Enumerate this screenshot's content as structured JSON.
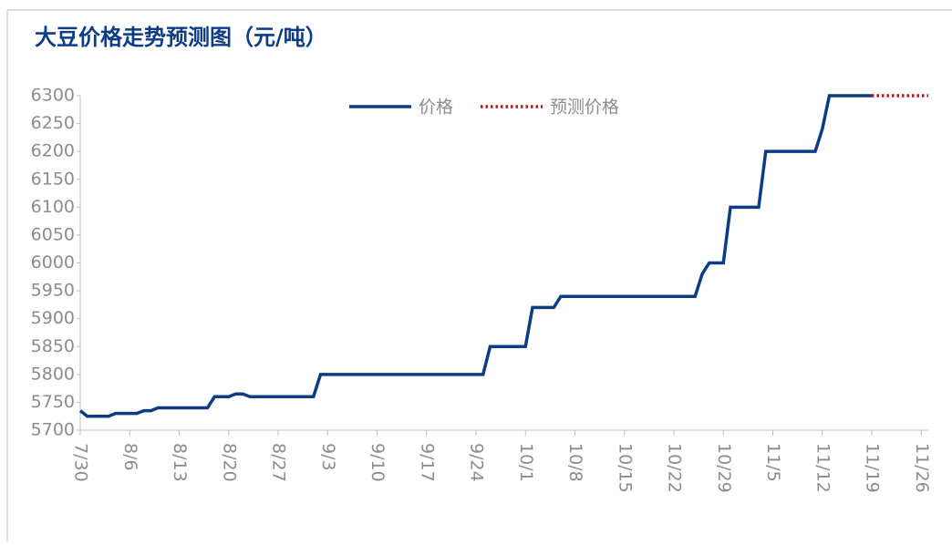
{
  "chart_data": {
    "type": "line",
    "title": "大豆价格走势预测图（元/吨）",
    "xlim": [
      "7/30",
      "11/27"
    ],
    "xticks": [
      "7/30",
      "8/6",
      "8/13",
      "8/20",
      "8/27",
      "9/3",
      "9/10",
      "9/17",
      "9/24",
      "10/1",
      "10/8",
      "10/15",
      "10/22",
      "10/29",
      "11/5",
      "11/12",
      "11/19",
      "11/26"
    ],
    "ylim": [
      5700,
      6300
    ],
    "yticks": [
      5700,
      5750,
      5800,
      5850,
      5900,
      5950,
      6000,
      6050,
      6100,
      6150,
      6200,
      6250,
      6300
    ],
    "legend": "top",
    "series": [
      {
        "name": "价格",
        "color": "#0d3c85",
        "style": "solid",
        "x": [
          "7/30",
          "7/31",
          "8/3",
          "8/4",
          "8/7",
          "8/8",
          "8/9",
          "8/10",
          "8/17",
          "8/18",
          "8/20",
          "8/21",
          "8/22",
          "8/23",
          "9/1",
          "9/2",
          "9/25",
          "9/26",
          "10/1",
          "10/2",
          "10/5",
          "10/6",
          "10/25",
          "10/26",
          "10/27",
          "10/29",
          "10/30",
          "11/3",
          "11/4",
          "11/11",
          "11/12",
          "11/13",
          "11/19"
        ],
        "values": [
          5735,
          5725,
          5725,
          5730,
          5730,
          5735,
          5735,
          5740,
          5740,
          5760,
          5760,
          5765,
          5765,
          5760,
          5760,
          5800,
          5800,
          5850,
          5850,
          5920,
          5920,
          5940,
          5940,
          5980,
          6000,
          6000,
          6100,
          6100,
          6200,
          6200,
          6240,
          6300,
          6300
        ]
      },
      {
        "name": "预测价格",
        "color": "#c0141c",
        "style": "dotted",
        "x": [
          "11/19",
          "11/27"
        ],
        "values": [
          6300,
          6300
        ]
      }
    ]
  }
}
